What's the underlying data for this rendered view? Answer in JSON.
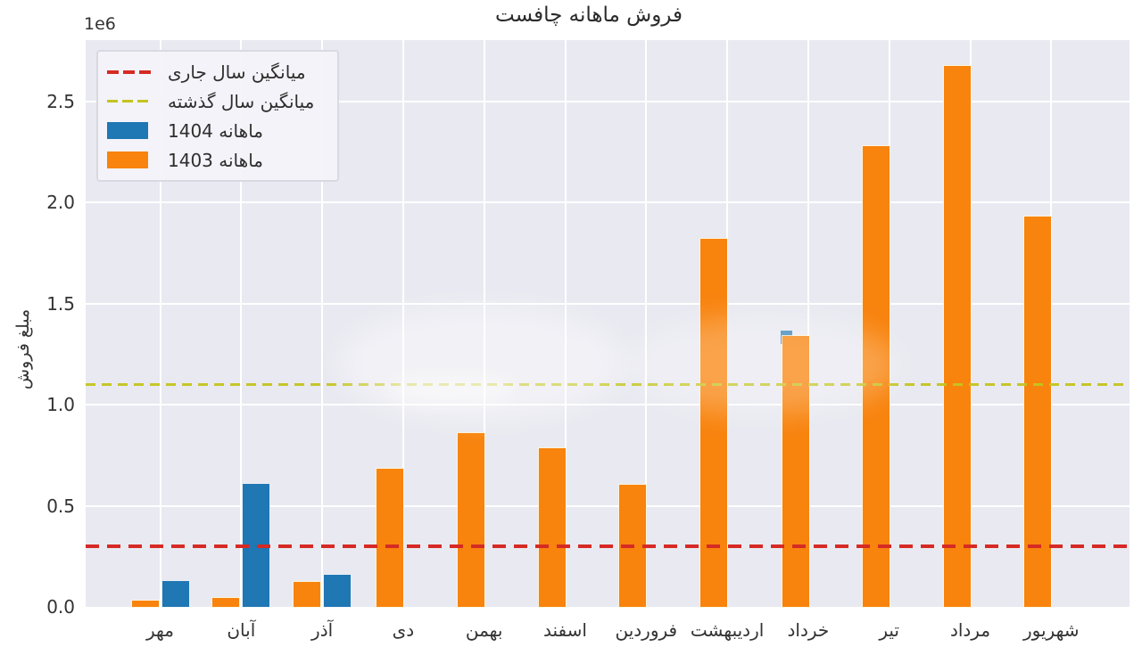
{
  "chart_data": {
    "type": "bar",
    "title": "فروش ماهانه  چافست",
    "ylabel": "مبلغ فروش",
    "offset_label": "1e6",
    "categories": [
      "مهر",
      "آبان",
      "آذر",
      "دی",
      "بهمن",
      "اسفند",
      "فروردین",
      "اردیبهشت",
      "خرداد",
      "تیر",
      "مرداد",
      "شهریور"
    ],
    "series": [
      {
        "name": "ماهانه 1403",
        "color": "#f8830d",
        "values": [
          30000,
          45000,
          125000,
          685000,
          860000,
          785000,
          605000,
          1820000,
          1340000,
          2280000,
          2675000,
          1930000
        ]
      },
      {
        "name": "ماهانه 1404",
        "color": "#1f77b4",
        "values": [
          130000,
          610000,
          160000,
          null,
          null,
          null,
          null,
          null,
          1365000,
          null,
          null,
          null
        ],
        "tip_only_indices": [
          8
        ]
      }
    ],
    "mean_lines": [
      {
        "label": "میانگین سال جاری",
        "value": 300000,
        "color": "#d62a24",
        "style": "dashed"
      },
      {
        "label": "میانگین سال گذشته",
        "value": 1100000,
        "color": "#c3c41f",
        "style": "dashed"
      }
    ],
    "yticks": [
      "0.0",
      "0.5",
      "1.0",
      "1.5",
      "2.0",
      "2.5"
    ],
    "ylim": [
      0,
      2800000
    ],
    "grid": true,
    "plot_background": "#e9e9f1",
    "grid_color": "#ffffff",
    "legend_position": "upper-left"
  }
}
